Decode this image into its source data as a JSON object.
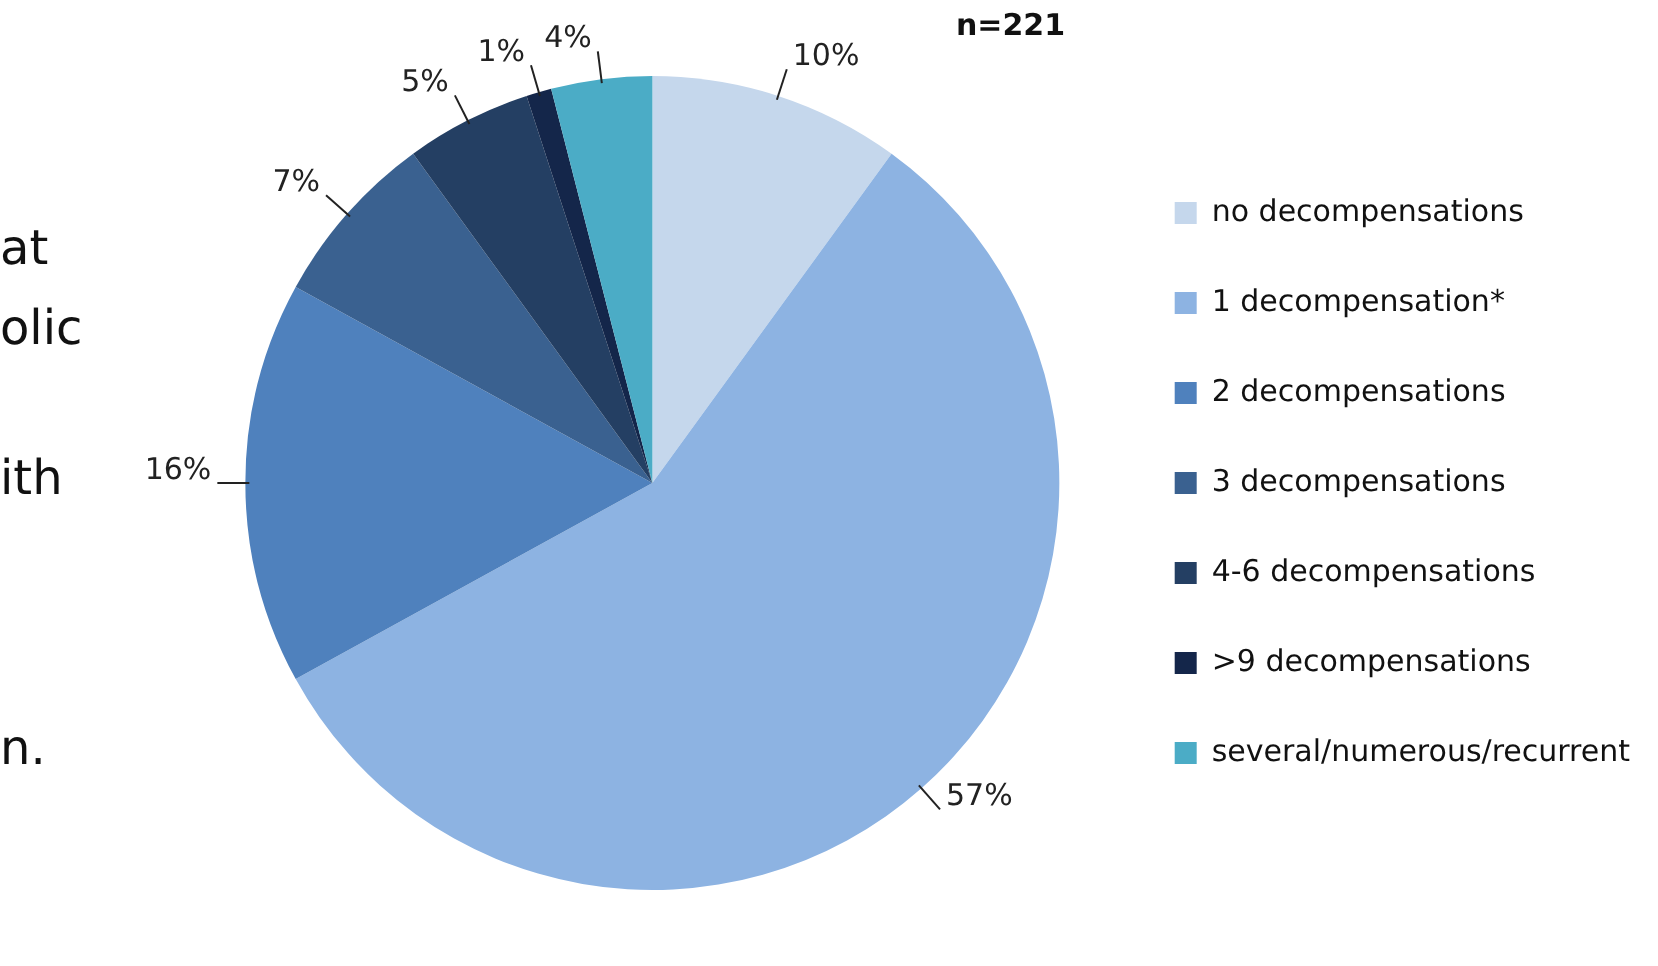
{
  "chart_data": {
    "type": "pie",
    "title": "n=221",
    "categories": [
      "no decompensations",
      "1 decompensation*",
      "2 decompensations",
      "3 decompensations",
      "4-6 decompensations",
      ">9 decompensations",
      "several/numerous/recurrent"
    ],
    "values": [
      10,
      57,
      16,
      7,
      5,
      1,
      4
    ],
    "colors": [
      "#c5d7ec",
      "#8db3e2",
      "#4f81bd",
      "#3a6190",
      "#243f63",
      "#14264a",
      "#4bacc6"
    ],
    "value_labels": [
      "10%",
      "57%",
      "16%",
      "7%",
      "5%",
      "1%",
      "4%"
    ],
    "legend": "right",
    "annotations": [
      "at",
      "olic",
      "ith",
      "n."
    ]
  }
}
